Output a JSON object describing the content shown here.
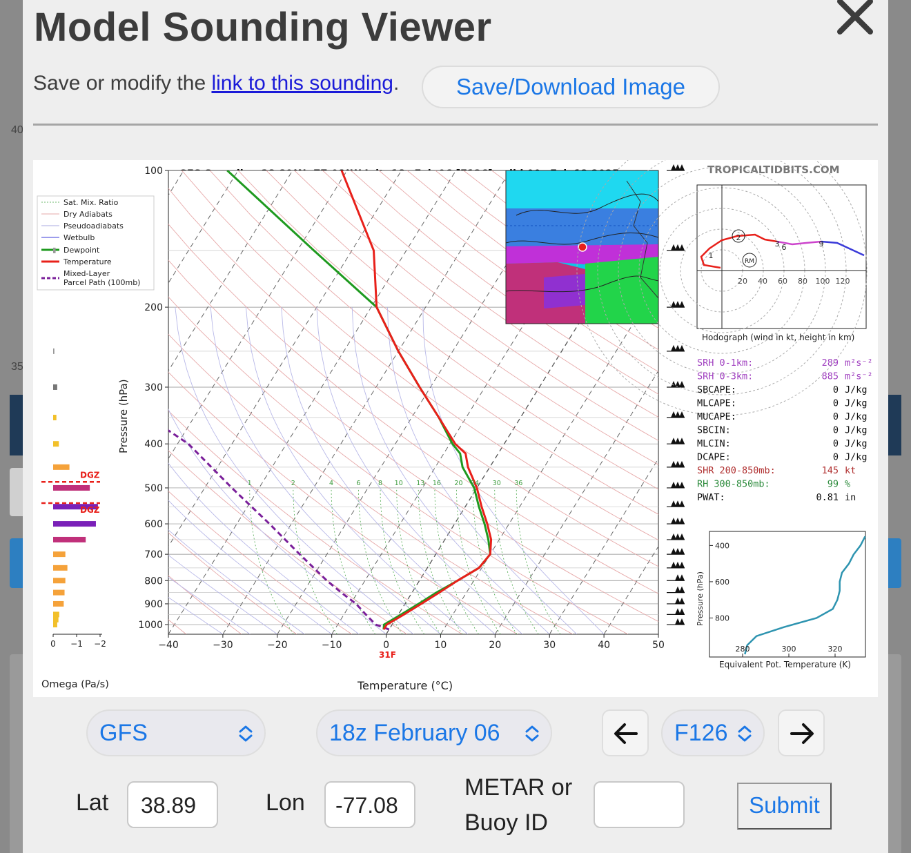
{
  "background": {
    "label_40": "40",
    "label_35": "35"
  },
  "modal": {
    "title": "Model Sounding Viewer",
    "save_prefix": "Save or modify the ",
    "save_link": "link to this sounding",
    "save_suffix": ".",
    "save_button": "Save/Download Image"
  },
  "sounding": {
    "title": "GFS Sounding 38.89°N, 77.08°W Init: 18z Feb 06 [F126] valid 00z Feb 12 2025",
    "watermark": "TROPICALTIDBITS.COM",
    "legend": [
      "Sat. Mix. Ratio",
      "Dry Adiabats",
      "Pseudoadiabats",
      "Wetbulb",
      "Dewpoint",
      "Temperature",
      "Mixed-Layer",
      "Parcel Path (100mb)"
    ],
    "pressure_label": "Pressure (hPa)",
    "pressure_ticks": [
      "100",
      "200",
      "300",
      "400",
      "500",
      "600",
      "700",
      "800",
      "900",
      "1000"
    ],
    "temp_label": "Temperature (°C)",
    "temp_ticks": [
      "−40",
      "−30",
      "−20",
      "−10",
      "0",
      "10",
      "20",
      "30",
      "40",
      "50"
    ],
    "omega_label": "Omega (Pa/s)",
    "omega_ticks": [
      "0",
      "−1",
      "−2"
    ],
    "dgz": "DGZ",
    "surface_temp": "31F",
    "mix_ratio_labels": [
      "1",
      "2",
      "4",
      "6",
      "8",
      "10",
      "13",
      "16",
      "20",
      "24",
      "30",
      "36"
    ],
    "hodograph_caption": "Hodograph (wind in kt, height in km)",
    "hodo_ticks": [
      "20",
      "40",
      "60",
      "80",
      "100",
      "120"
    ],
    "hodo_points": [
      "1",
      "2",
      "3",
      "6",
      "9"
    ],
    "hodo_rm": "RM",
    "theta_caption": "Equivalent Pot. Temperature (K)",
    "theta_ylabel": "Pressure (hPa)",
    "theta_yticks": [
      "400",
      "600",
      "800"
    ],
    "theta_xticks": [
      "280",
      "300",
      "320"
    ],
    "indices": [
      {
        "name": "SRH 0-1km:",
        "value": "289",
        "unit": "m²s⁻²",
        "color": "#a040c0"
      },
      {
        "name": "SRH 0-3km:",
        "value": "885",
        "unit": "m²s⁻²",
        "color": "#a040c0"
      },
      {
        "name": "SBCAPE:",
        "value": "0",
        "unit": "J/kg",
        "color": "#111111"
      },
      {
        "name": "MLCAPE:",
        "value": "0",
        "unit": "J/kg",
        "color": "#111111"
      },
      {
        "name": "MUCAPE:",
        "value": "0",
        "unit": "J/kg",
        "color": "#111111"
      },
      {
        "name": "SBCIN:",
        "value": "0",
        "unit": "J/kg",
        "color": "#111111"
      },
      {
        "name": "MLCIN:",
        "value": "0",
        "unit": "J/kg",
        "color": "#111111"
      },
      {
        "name": "DCAPE:",
        "value": "0",
        "unit": "J/kg",
        "color": "#111111"
      },
      {
        "name": "SHR 200-850mb:",
        "value": "145",
        "unit": "kt",
        "color": "#b03030"
      },
      {
        "name": "RH 300-850mb:",
        "value": "99",
        "unit": "%",
        "color": "#2a8a3a"
      },
      {
        "name": "PWAT:",
        "value": "0.81",
        "unit": "in",
        "color": "#111111"
      }
    ]
  },
  "controls": {
    "model": "GFS",
    "run": "18z February 06",
    "forecast_hour": "F126",
    "lat_label": "Lat",
    "lat_value": "38.89",
    "lon_label": "Lon",
    "lon_value": "-77.08",
    "metar_label_1": "METAR or",
    "metar_label_2": "Buoy ID",
    "metar_value": "",
    "submit": "Submit"
  },
  "colors": {
    "accent": "#1b77e6",
    "temperature": "#e8201a",
    "dewpoint": "#1f9a1f",
    "parcel": "#7a1f9a"
  }
}
